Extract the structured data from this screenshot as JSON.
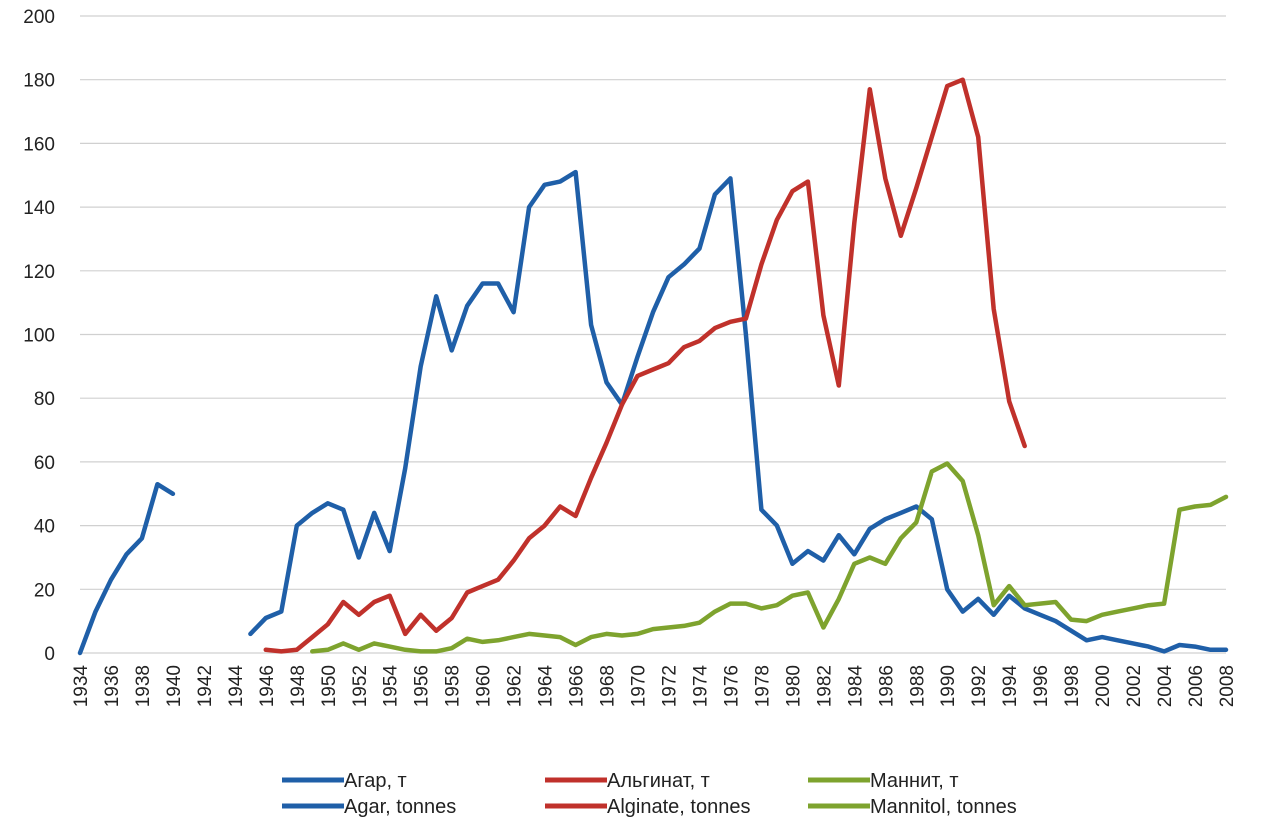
{
  "chart_data": {
    "type": "line",
    "title": "",
    "xlabel": "",
    "ylabel": "",
    "xlim": [
      1934,
      2008
    ],
    "ylim": [
      0,
      200
    ],
    "yticks": [
      0,
      20,
      40,
      60,
      80,
      100,
      120,
      140,
      160,
      180,
      200
    ],
    "xticks": [
      1934,
      1936,
      1938,
      1940,
      1942,
      1944,
      1946,
      1948,
      1950,
      1952,
      1954,
      1956,
      1958,
      1960,
      1962,
      1964,
      1966,
      1968,
      1970,
      1972,
      1974,
      1976,
      1978,
      1980,
      1982,
      1984,
      1986,
      1988,
      1990,
      1992,
      1994,
      1996,
      1998,
      2000,
      2002,
      2004,
      2006,
      2008
    ],
    "grid": "horizontal",
    "legend_position": "bottom",
    "series": [
      {
        "name": "Агар, т",
        "name_en": "Agar, tonnes",
        "color": "#1f5fa8",
        "points": [
          [
            [
              1934,
              0
            ],
            [
              1935,
              13
            ],
            [
              1936,
              23
            ],
            [
              1937,
              31
            ],
            [
              1938,
              36
            ],
            [
              1939,
              53
            ],
            [
              1940,
              50
            ]
          ],
          [
            [
              1945,
              6
            ],
            [
              1946,
              11
            ],
            [
              1947,
              13
            ],
            [
              1948,
              40
            ],
            [
              1949,
              44
            ],
            [
              1950,
              47
            ],
            [
              1951,
              45
            ],
            [
              1952,
              30
            ],
            [
              1953,
              44
            ],
            [
              1954,
              32
            ],
            [
              1955,
              58
            ],
            [
              1956,
              90
            ],
            [
              1957,
              112
            ],
            [
              1958,
              95
            ],
            [
              1959,
              109
            ],
            [
              1960,
              116
            ],
            [
              1961,
              116
            ],
            [
              1962,
              107
            ],
            [
              1963,
              140
            ],
            [
              1964,
              147
            ],
            [
              1965,
              148
            ],
            [
              1966,
              151
            ],
            [
              1967,
              103
            ],
            [
              1968,
              85
            ],
            [
              1969,
              78
            ],
            [
              1970,
              93
            ],
            [
              1971,
              107
            ],
            [
              1972,
              118
            ],
            [
              1973,
              122
            ],
            [
              1974,
              127
            ],
            [
              1975,
              144
            ],
            [
              1976,
              149
            ],
            [
              1977,
              100
            ],
            [
              1978,
              45
            ],
            [
              1979,
              40
            ],
            [
              1980,
              28
            ],
            [
              1981,
              32
            ],
            [
              1982,
              29
            ],
            [
              1983,
              37
            ],
            [
              1984,
              31
            ],
            [
              1985,
              39
            ],
            [
              1986,
              42
            ],
            [
              1987,
              44
            ],
            [
              1988,
              46
            ],
            [
              1989,
              42
            ],
            [
              1990,
              20
            ],
            [
              1991,
              13
            ],
            [
              1992,
              17
            ],
            [
              1993,
              12
            ],
            [
              1994,
              18
            ],
            [
              1995,
              14
            ],
            [
              1996,
              12
            ],
            [
              1997,
              10
            ],
            [
              1998,
              7
            ],
            [
              1999,
              4
            ],
            [
              2000,
              5
            ],
            [
              2001,
              4
            ],
            [
              2002,
              3
            ],
            [
              2003,
              2
            ],
            [
              2004,
              0.5
            ],
            [
              2005,
              2.5
            ],
            [
              2006,
              2
            ],
            [
              2007,
              1
            ],
            [
              2008,
              1
            ]
          ]
        ]
      },
      {
        "name": "Альгинат, т",
        "name_en": "Alginate, tonnes",
        "color": "#c0312b",
        "points": [
          [
            [
              1946,
              1
            ],
            [
              1947,
              0.5
            ],
            [
              1948,
              1
            ],
            [
              1949,
              5
            ],
            [
              1950,
              9
            ],
            [
              1951,
              16
            ],
            [
              1952,
              12
            ],
            [
              1953,
              16
            ],
            [
              1954,
              18
            ],
            [
              1955,
              6
            ],
            [
              1956,
              12
            ],
            [
              1957,
              7
            ],
            [
              1958,
              11
            ],
            [
              1959,
              19
            ],
            [
              1960,
              21
            ],
            [
              1961,
              23
            ],
            [
              1962,
              29
            ],
            [
              1963,
              36
            ],
            [
              1964,
              40
            ],
            [
              1965,
              46
            ],
            [
              1966,
              43
            ],
            [
              1967,
              55
            ],
            [
              1968,
              66
            ],
            [
              1969,
              78
            ],
            [
              1970,
              87
            ],
            [
              1971,
              89
            ],
            [
              1972,
              91
            ],
            [
              1973,
              96
            ],
            [
              1974,
              98
            ],
            [
              1975,
              102
            ],
            [
              1976,
              104
            ],
            [
              1977,
              105
            ],
            [
              1978,
              122
            ],
            [
              1979,
              136
            ],
            [
              1980,
              145
            ],
            [
              1981,
              148
            ],
            [
              1982,
              106
            ],
            [
              1983,
              84
            ],
            [
              1984,
              135
            ],
            [
              1985,
              177
            ],
            [
              1986,
              149
            ],
            [
              1987,
              131
            ],
            [
              1988,
              146
            ],
            [
              1989,
              162
            ],
            [
              1990,
              178
            ],
            [
              1991,
              180
            ],
            [
              1992,
              162
            ],
            [
              1993,
              108
            ],
            [
              1994,
              79
            ],
            [
              1995,
              65
            ]
          ]
        ]
      },
      {
        "name": "Маннит, т",
        "name_en": "Mannitol, tonnes",
        "color": "#7ea32e",
        "points": [
          [
            [
              1949,
              0.5
            ],
            [
              1950,
              1
            ],
            [
              1951,
              3
            ],
            [
              1952,
              1
            ],
            [
              1953,
              3
            ],
            [
              1954,
              2
            ],
            [
              1955,
              1
            ],
            [
              1956,
              0.5
            ],
            [
              1957,
              0.5
            ],
            [
              1958,
              1.5
            ],
            [
              1959,
              4.5
            ],
            [
              1960,
              3.5
            ],
            [
              1961,
              4
            ],
            [
              1962,
              5
            ],
            [
              1963,
              6
            ],
            [
              1964,
              5.5
            ],
            [
              1965,
              5
            ],
            [
              1966,
              2.5
            ],
            [
              1967,
              5
            ],
            [
              1968,
              6
            ],
            [
              1969,
              5.5
            ],
            [
              1970,
              6
            ],
            [
              1971,
              7.5
            ],
            [
              1972,
              8
            ],
            [
              1973,
              8.5
            ],
            [
              1974,
              9.5
            ],
            [
              1975,
              13
            ],
            [
              1976,
              15.5
            ],
            [
              1977,
              15.5
            ],
            [
              1978,
              14
            ],
            [
              1979,
              15
            ],
            [
              1980,
              18
            ],
            [
              1981,
              19
            ],
            [
              1982,
              8
            ],
            [
              1983,
              17
            ],
            [
              1984,
              28
            ],
            [
              1985,
              30
            ],
            [
              1986,
              28
            ],
            [
              1987,
              36
            ],
            [
              1988,
              41
            ],
            [
              1989,
              57
            ],
            [
              1990,
              59.5
            ],
            [
              1991,
              54
            ],
            [
              1992,
              37
            ],
            [
              1993,
              15
            ],
            [
              1994,
              21
            ],
            [
              1995,
              15
            ],
            [
              1996,
              15.5
            ],
            [
              1997,
              16
            ],
            [
              1998,
              10.5
            ],
            [
              1999,
              10
            ],
            [
              2000,
              12
            ],
            [
              2001,
              13
            ],
            [
              2002,
              14
            ],
            [
              2003,
              15
            ],
            [
              2004,
              15.5
            ],
            [
              2005,
              45
            ],
            [
              2006,
              46
            ],
            [
              2007,
              46.5
            ],
            [
              2008,
              49
            ]
          ]
        ]
      }
    ]
  }
}
